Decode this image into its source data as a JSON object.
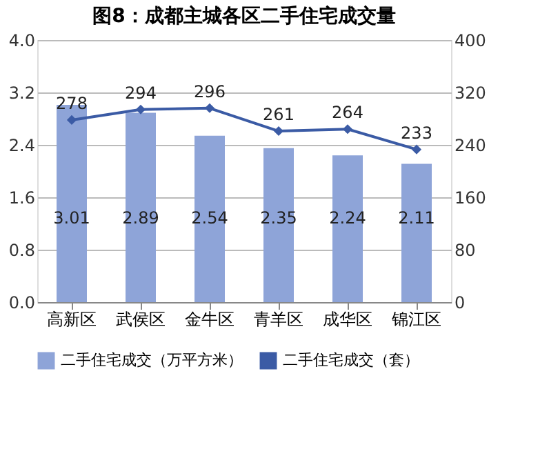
{
  "chart_data": {
    "type": "bar",
    "title": "图8：成都主城各区二手住宅成交量",
    "categories": [
      "高新区",
      "武侯区",
      "金牛区",
      "青羊区",
      "成华区",
      "锦江区"
    ],
    "series": [
      {
        "name": "二手住宅成交（万平方米）",
        "color": "#8ea4d8",
        "values": [
          3.01,
          2.89,
          2.54,
          2.35,
          2.24,
          2.11
        ]
      },
      {
        "name": "二手住宅成交（套）",
        "type": "line",
        "axis": "y2",
        "color": "#3b5ba5",
        "values": [
          278,
          294,
          296,
          261,
          264,
          233
        ]
      }
    ],
    "ylim": [
      0,
      4
    ],
    "yticks": [
      {
        "value": 0,
        "label": "0.0"
      },
      {
        "value": 0.8,
        "label": "0.8"
      },
      {
        "value": 1.6,
        "label": "1.6"
      },
      {
        "value": 2.4,
        "label": "2.4"
      },
      {
        "value": 3.2,
        "label": "3.2"
      },
      {
        "value": 4,
        "label": "4.0"
      }
    ],
    "y2lim": [
      0,
      400
    ],
    "y2ticks": [
      0,
      80,
      160,
      240,
      320,
      400
    ],
    "grid": "y",
    "legend": "bottom",
    "marker": "diamond",
    "line_style": "solid",
    "data_labels": true
  }
}
